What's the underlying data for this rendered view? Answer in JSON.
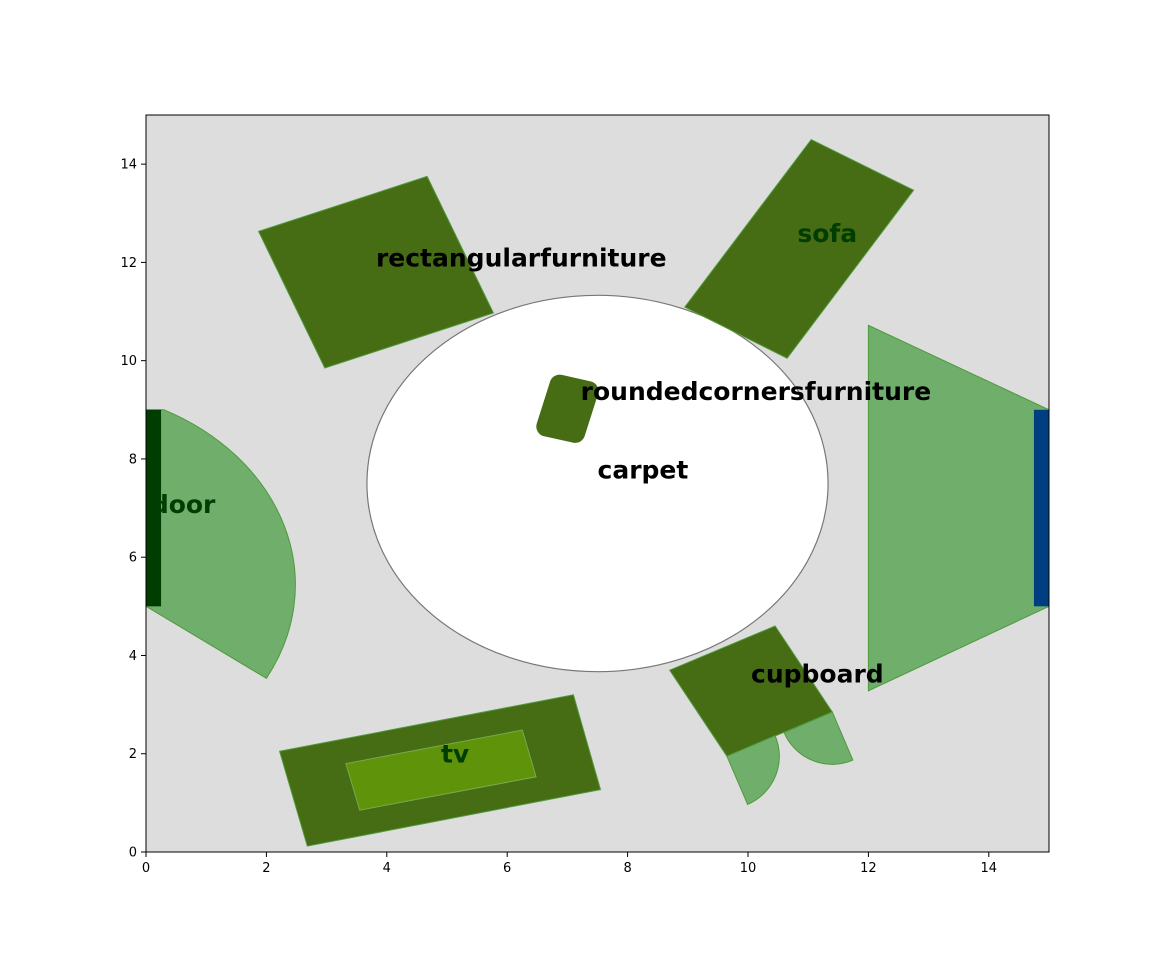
{
  "chart_data": {
    "type": "diagram",
    "title": "",
    "xlabel": "",
    "ylabel": "",
    "xlim": [
      0,
      15
    ],
    "ylim": [
      0,
      15
    ],
    "x_ticks": [
      "0",
      "2",
      "4",
      "6",
      "8",
      "10",
      "12",
      "14"
    ],
    "y_ticks": [
      "0",
      "2",
      "4",
      "6",
      "8",
      "10",
      "12",
      "14"
    ],
    "background_color": "#dddddd",
    "shapes": [
      {
        "name": "carpet",
        "label": "carpet",
        "kind": "ellipse",
        "center": [
          7.5,
          7.5
        ],
        "rx": 3.83,
        "ry": 3.83,
        "fill": "#ffffff",
        "stroke": "#777777"
      },
      {
        "name": "rectangular-furniture",
        "label": "rectangularfurniture",
        "kind": "polygon",
        "points": [
          [
            1.87,
            12.63
          ],
          [
            4.67,
            13.75
          ],
          [
            5.77,
            10.97
          ],
          [
            2.97,
            9.85
          ]
        ],
        "fill": "#466c14",
        "stroke": "#4f9a3c"
      },
      {
        "name": "sofa",
        "label": "sofa",
        "kind": "polygon",
        "points": [
          [
            11.05,
            14.5
          ],
          [
            12.75,
            13.47
          ],
          [
            10.65,
            10.05
          ],
          [
            8.95,
            11.09
          ]
        ],
        "fill": "#466c14",
        "stroke": "#4f9a3c"
      },
      {
        "name": "rounded-corners-furniture",
        "label": "roundedcornersfurniture",
        "kind": "rounded-polygon",
        "points": [
          [
            6.87,
            9.51
          ],
          [
            7.35,
            9.38
          ],
          [
            7.13,
            8.53
          ],
          [
            6.65,
            8.66
          ]
        ],
        "fill": "#466c14",
        "stroke": "#4f9a3c"
      },
      {
        "name": "cupboard",
        "label": "cupboard",
        "kind": "polygon",
        "points": [
          [
            8.7,
            3.7
          ],
          [
            10.45,
            4.6
          ],
          [
            11.4,
            2.85
          ],
          [
            9.65,
            1.95
          ]
        ],
        "fill": "#466c14",
        "stroke": "#4f9a3c"
      },
      {
        "name": "tv-stand",
        "label": "",
        "kind": "polygon",
        "points": [
          [
            2.22,
            2.05
          ],
          [
            7.1,
            3.2
          ],
          [
            7.55,
            1.27
          ],
          [
            2.68,
            0.12
          ]
        ],
        "fill": "#466c14",
        "stroke": "#4f9a3c"
      },
      {
        "name": "tv",
        "label": "tv",
        "kind": "polygon",
        "points": [
          [
            3.32,
            1.8
          ],
          [
            6.25,
            2.48
          ],
          [
            6.48,
            1.53
          ],
          [
            3.55,
            0.85
          ]
        ],
        "fill": "#5f930a",
        "stroke": "#79a850"
      }
    ],
    "doors": [
      {
        "name": "left-door",
        "label": "door",
        "rect": [
          0,
          5,
          0.25,
          4
        ],
        "fill": "#003d00",
        "swing": {
          "hinge": [
            0,
            7
          ],
          "radius": 4.0,
          "fill": "#6fae6b",
          "stroke": "#4f9a3c"
        }
      },
      {
        "name": "right-door",
        "label": "",
        "rect": [
          14.75,
          5,
          0.25,
          4
        ],
        "fill": "#003f7f",
        "swing": {
          "apex": [
            15,
            7
          ],
          "points": [
            [
              15,
              9
            ],
            [
              12,
              10.72
            ],
            [
              12,
              3.28
            ],
            [
              15,
              5
            ]
          ],
          "fill": "#6fae6b",
          "stroke": "#4f9a3c"
        }
      }
    ],
    "cupboard_doors": [
      {
        "name": "cupboard-door-left",
        "hinge": [
          9.65,
          1.95
        ],
        "tip": [
          10.45,
          2.37
        ],
        "fill": "#6fae6b"
      },
      {
        "name": "cupboard-door-right",
        "hinge": [
          11.4,
          2.85
        ],
        "tip": [
          10.6,
          2.43
        ],
        "fill": "#6fae6b"
      }
    ],
    "label_colors": {
      "dark": "#003d00",
      "light": "#000000"
    }
  }
}
